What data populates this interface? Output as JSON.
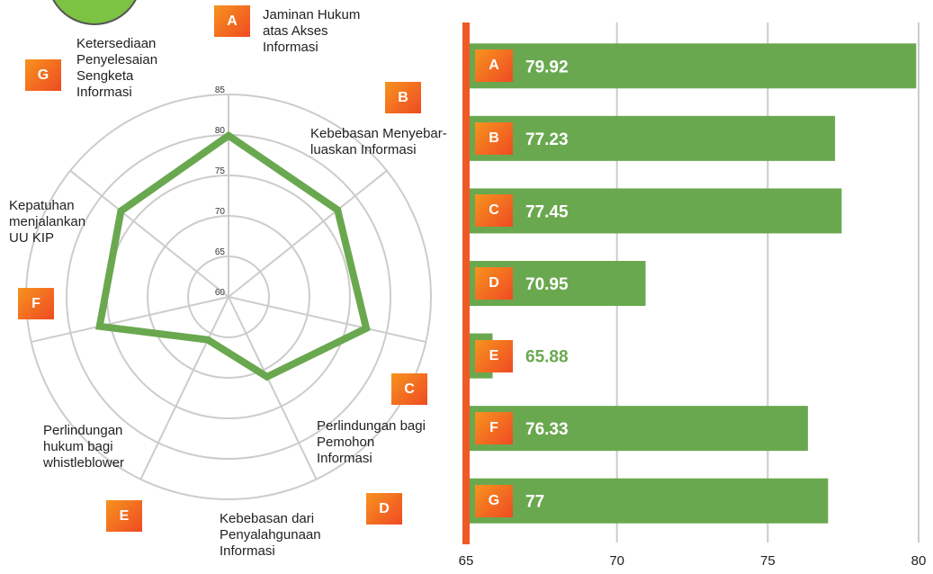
{
  "chart_data": [
    {
      "type": "radar",
      "keys": [
        "A",
        "B",
        "C",
        "D",
        "E",
        "F",
        "G"
      ],
      "categories": [
        "Jaminan Hukum atas Akses Informasi",
        "Kebebasan Menyebar-luaskan Informasi",
        "Perlindungan bagi Pemohon Informasi",
        "Kebebasan dari Penyalahgunaan Informasi",
        "Perlindungan hukum bagi whistleblower",
        "Kepatuhan menjalankan UU KIP",
        "Ketersediaan Penyelesaian Sengketa Informasi"
      ],
      "values": [
        79.92,
        77.23,
        77.45,
        70.95,
        65.88,
        76.33,
        77
      ],
      "color": "#6aa84f",
      "ylim": [
        60,
        85
      ],
      "yticks": [
        60,
        65,
        70,
        75,
        80,
        85
      ]
    },
    {
      "type": "hbar",
      "categories": [
        "A",
        "B",
        "C",
        "D",
        "E",
        "F",
        "G"
      ],
      "values": [
        79.92,
        77.23,
        77.45,
        70.95,
        65.88,
        76.33,
        77
      ],
      "color": "#6aa84f",
      "xlim": [
        65,
        80
      ],
      "xticks": [
        65,
        70,
        75,
        80
      ],
      "grid": true
    }
  ]
}
